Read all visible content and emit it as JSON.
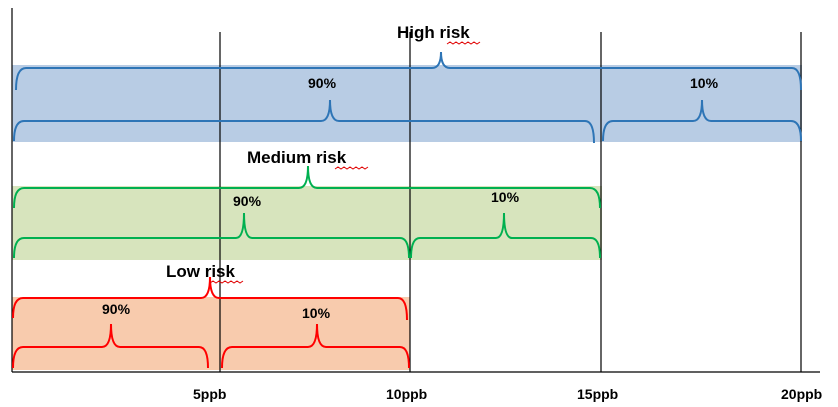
{
  "diagram": {
    "axis_ticks": [
      "5ppb",
      "10ppb",
      "15ppb",
      "20ppb"
    ],
    "risk_groups": [
      {
        "label": "High risk",
        "upper_share": "90%",
        "lower_share": "10%",
        "band_color": "#b8cce4",
        "bracket_color": "#2e75b6"
      },
      {
        "label": "Medium risk",
        "upper_share": "90%",
        "lower_share": "10%",
        "band_color": "#d7e4bd",
        "bracket_color": "#00b050"
      },
      {
        "label": "Low risk",
        "upper_share": "90%",
        "lower_share": "10%",
        "band_color": "#f8cbad",
        "bracket_color": "#ff0000"
      }
    ],
    "spellcheck_underline_color": "#e00000",
    "line_color": "#000000"
  }
}
